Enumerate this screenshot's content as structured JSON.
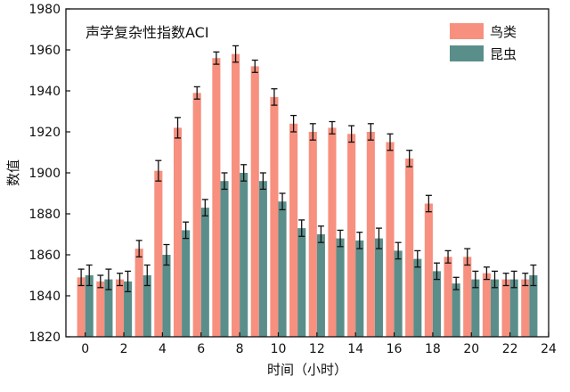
{
  "chart_data": {
    "type": "bar",
    "title": "声学复杂性指数ACI",
    "xlabel": "时间（小时）",
    "ylabel": "数值",
    "xlim": [
      -1,
      24
    ],
    "ylim": [
      1820,
      1980
    ],
    "x_ticks": [
      0,
      2,
      4,
      6,
      8,
      10,
      12,
      14,
      16,
      18,
      20,
      22,
      24
    ],
    "y_ticks": [
      1820,
      1840,
      1860,
      1880,
      1900,
      1920,
      1940,
      1960,
      1980
    ],
    "legend_position": "top-right",
    "grid": false,
    "hours": [
      0,
      1,
      2,
      3,
      4,
      5,
      6,
      7,
      8,
      9,
      10,
      11,
      12,
      13,
      14,
      15,
      16,
      17,
      18,
      19,
      20,
      21,
      22,
      23
    ],
    "series": [
      {
        "name": "鸟类",
        "color": "#F7907F",
        "values": [
          1849,
          1847,
          1848,
          1863,
          1901,
          1922,
          1939,
          1956,
          1958,
          1952,
          1937,
          1924,
          1920,
          1922,
          1919,
          1920,
          1915,
          1907,
          1885,
          1859,
          1859,
          1851,
          1848,
          1848
        ],
        "errors": [
          4,
          3,
          3,
          4,
          5,
          5,
          3,
          3,
          4,
          3,
          4,
          4,
          4,
          3,
          4,
          4,
          4,
          4,
          4,
          3,
          4,
          3,
          3,
          3
        ]
      },
      {
        "name": "昆虫",
        "color": "#5A8E8A",
        "values": [
          1850,
          1848,
          1847,
          1850,
          1860,
          1872,
          1883,
          1896,
          1900,
          1896,
          1886,
          1873,
          1870,
          1868,
          1867,
          1868,
          1862,
          1858,
          1852,
          1846,
          1848,
          1848,
          1848,
          1850
        ],
        "errors": [
          5,
          5,
          5,
          5,
          5,
          4,
          4,
          4,
          4,
          4,
          4,
          4,
          4,
          4,
          4,
          5,
          4,
          4,
          4,
          3,
          4,
          4,
          4,
          5
        ]
      }
    ]
  }
}
